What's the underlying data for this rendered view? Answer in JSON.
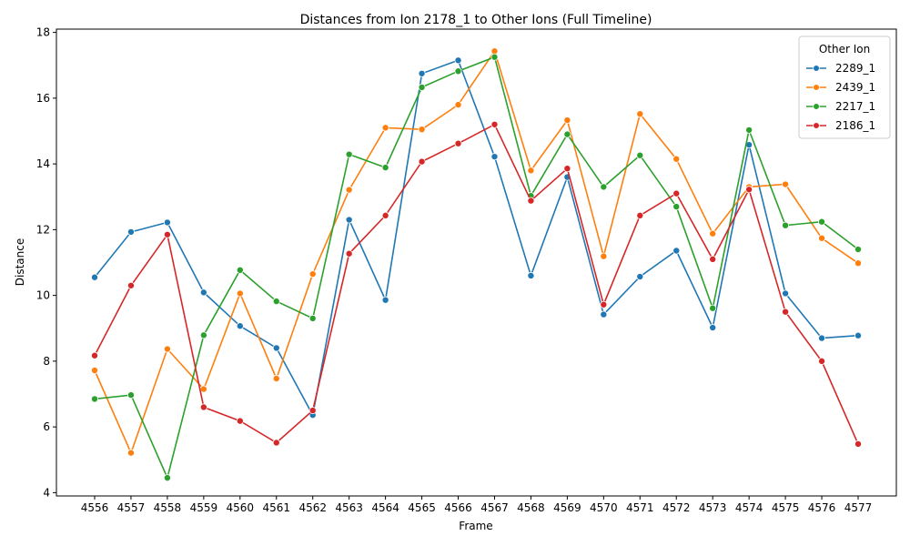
{
  "chart_data": {
    "type": "line",
    "title": "Distances from Ion 2178_1 to Other Ions (Full Timeline)",
    "xlabel": "Frame",
    "ylabel": "Distance",
    "categories": [
      "4556",
      "4557",
      "4558",
      "4559",
      "4560",
      "4561",
      "4562",
      "4563",
      "4564",
      "4565",
      "4566",
      "4567",
      "4568",
      "4569",
      "4570",
      "4571",
      "4572",
      "4573",
      "4574",
      "4575",
      "4576",
      "4577"
    ],
    "ylim": [
      3.9,
      18.1
    ],
    "yticks": [
      4,
      6,
      8,
      10,
      12,
      14,
      16,
      18
    ],
    "grid": false,
    "legend": {
      "title": "Other Ion",
      "placement": "top-right"
    },
    "series": [
      {
        "name": "2289_1",
        "color": "#1f77b4",
        "values": [
          10.55,
          11.93,
          12.22,
          10.09,
          9.07,
          8.4,
          6.36,
          12.3,
          9.86,
          16.75,
          17.15,
          14.22,
          10.6,
          13.6,
          9.42,
          10.57,
          11.36,
          9.02,
          14.58,
          10.06,
          8.7,
          8.78
        ]
      },
      {
        "name": "2439_1",
        "color": "#ff7f0e",
        "values": [
          7.72,
          5.21,
          8.37,
          7.15,
          10.06,
          7.47,
          10.65,
          13.21,
          15.1,
          15.05,
          15.8,
          17.43,
          13.8,
          15.33,
          11.19,
          15.52,
          14.15,
          11.88,
          13.3,
          13.38,
          11.74,
          10.98
        ]
      },
      {
        "name": "2217_1",
        "color": "#2ca02c",
        "values": [
          6.85,
          6.97,
          4.45,
          8.79,
          10.77,
          9.82,
          9.3,
          14.29,
          13.89,
          16.33,
          16.82,
          17.25,
          13.03,
          14.9,
          13.3,
          14.26,
          12.7,
          9.61,
          15.03,
          12.13,
          12.24,
          11.4
        ]
      },
      {
        "name": "2186_1",
        "color": "#d62728",
        "values": [
          8.17,
          10.3,
          11.85,
          6.6,
          6.18,
          5.52,
          6.5,
          11.27,
          12.43,
          14.07,
          14.62,
          15.2,
          12.88,
          13.86,
          9.72,
          12.43,
          13.1,
          11.1,
          13.22,
          9.5,
          8.0,
          5.48
        ]
      }
    ]
  }
}
